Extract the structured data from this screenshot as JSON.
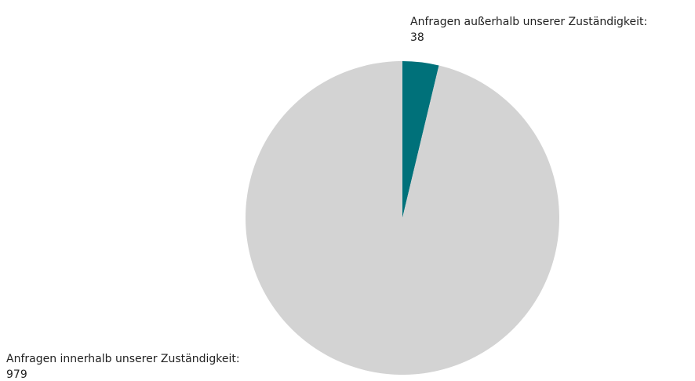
{
  "chart_data": {
    "type": "pie",
    "categories": [
      "Anfragen außerhalb unserer Zuständigkeit:",
      "Anfragen innerhalb unserer Zuständigkeit:"
    ],
    "values": [
      38,
      979
    ],
    "colors": [
      "#00717a",
      "#d3d3d3"
    ]
  }
}
